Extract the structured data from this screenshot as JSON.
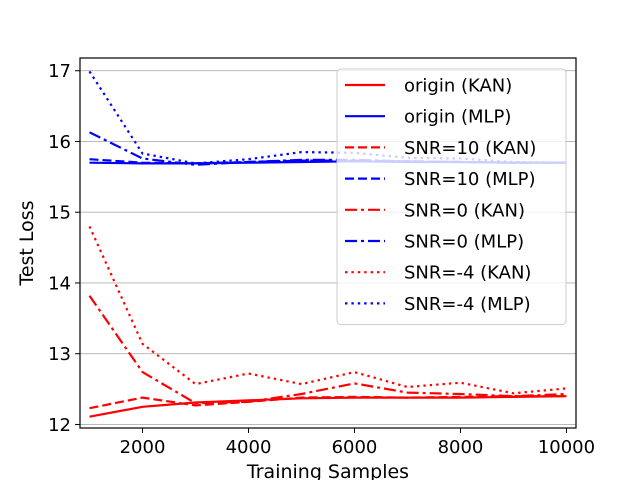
{
  "chart_data": {
    "type": "line",
    "title": "",
    "xlabel": "Training Samples",
    "ylabel": "Test Loss",
    "xlim": [
      820,
      10180
    ],
    "ylim": [
      11.95,
      17.18
    ],
    "xticks": [
      2000,
      4000,
      6000,
      8000,
      10000
    ],
    "yticks": [
      12,
      13,
      14,
      15,
      16,
      17
    ],
    "grid": "horizontal",
    "legend_position": "top-right",
    "x": [
      1000,
      2000,
      3000,
      4000,
      5000,
      6000,
      7000,
      8000,
      9000,
      10000
    ],
    "series": [
      {
        "name": "origin (KAN)",
        "color": "#ff0000",
        "style": "solid",
        "values": [
          12.11,
          12.25,
          12.31,
          12.34,
          12.37,
          12.38,
          12.38,
          12.38,
          12.39,
          12.4
        ]
      },
      {
        "name": "origin (MLP)",
        "color": "#0000ff",
        "style": "solid",
        "values": [
          15.7,
          15.69,
          15.69,
          15.7,
          15.71,
          15.72,
          15.71,
          15.71,
          15.7,
          15.7
        ]
      },
      {
        "name": "SNR=10 (KAN)",
        "color": "#ff0000",
        "style": "dashed",
        "values": [
          12.23,
          12.38,
          12.27,
          12.32,
          12.38,
          12.39,
          12.38,
          12.39,
          12.4,
          12.4
        ]
      },
      {
        "name": "SNR=10 (MLP)",
        "color": "#0000ff",
        "style": "dashed",
        "values": [
          15.75,
          15.7,
          15.69,
          15.71,
          15.73,
          15.73,
          15.72,
          15.71,
          15.7,
          15.7
        ]
      },
      {
        "name": "SNR=0 (KAN)",
        "color": "#ff0000",
        "style": "dashdot",
        "values": [
          13.82,
          12.74,
          12.3,
          12.32,
          12.43,
          12.58,
          12.45,
          12.43,
          12.4,
          12.43
        ]
      },
      {
        "name": "SNR=0 (MLP)",
        "color": "#0000ff",
        "style": "dashdot",
        "values": [
          16.13,
          15.76,
          15.67,
          15.71,
          15.74,
          15.74,
          15.72,
          15.71,
          15.7,
          15.7
        ]
      },
      {
        "name": "SNR=-4 (KAN)",
        "color": "#ff0000",
        "style": "dotted",
        "values": [
          14.8,
          13.14,
          12.57,
          12.72,
          12.57,
          12.74,
          12.53,
          12.59,
          12.44,
          12.51
        ]
      },
      {
        "name": "SNR=-4 (MLP)",
        "color": "#0000ff",
        "style": "dotted",
        "values": [
          16.99,
          15.83,
          15.69,
          15.75,
          15.85,
          15.84,
          15.77,
          15.76,
          15.71,
          15.7
        ]
      }
    ]
  }
}
